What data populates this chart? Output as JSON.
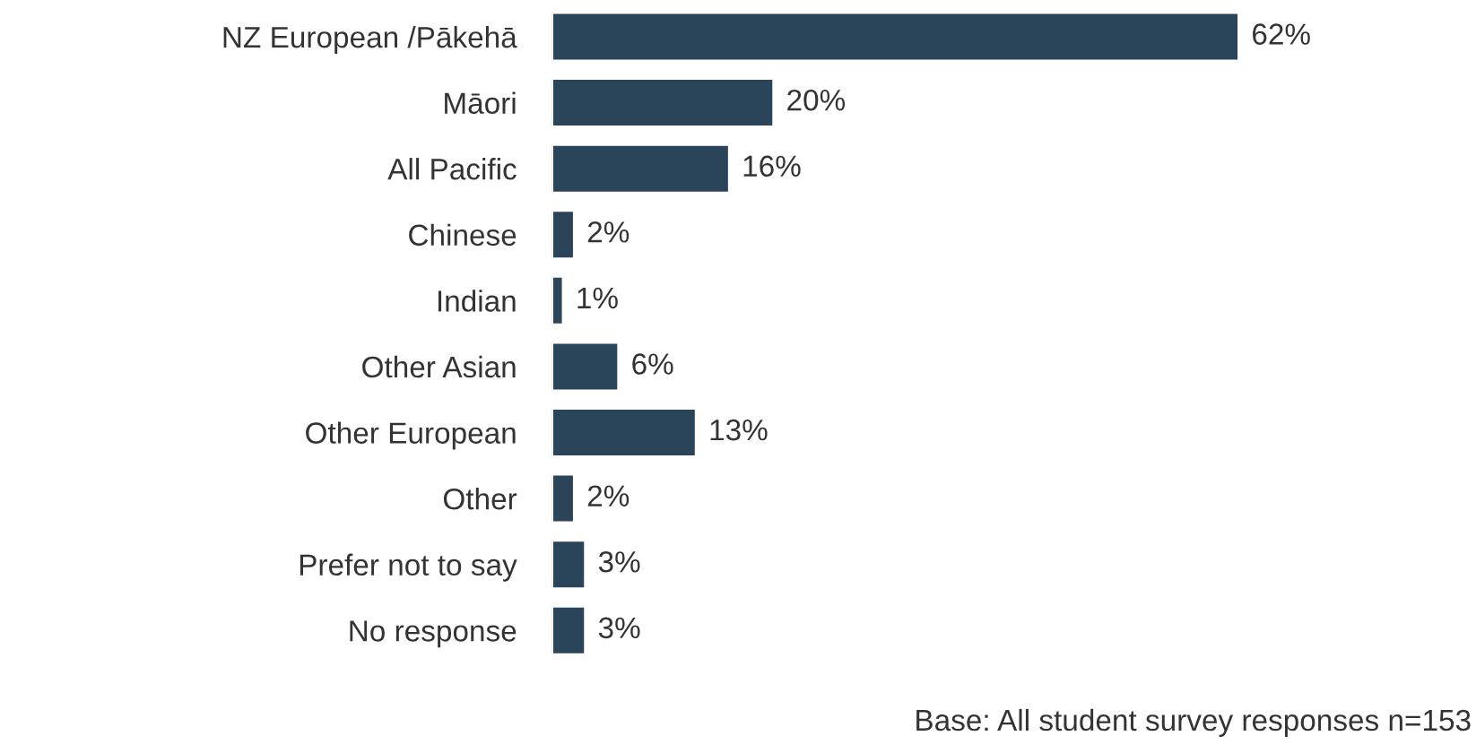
{
  "chart_data": {
    "type": "bar",
    "orientation": "horizontal",
    "categories": [
      "NZ European /Pākehā",
      "Māori",
      "All Pacific",
      "Chinese",
      "Indian",
      "Other Asian",
      "Other European",
      "Other",
      "Prefer not to say",
      "No response"
    ],
    "values": [
      62,
      20,
      16,
      2,
      1,
      6,
      13,
      2,
      3,
      3
    ],
    "value_labels": [
      "62%",
      "20%",
      "16%",
      "2%",
      "1%",
      "6%",
      "13%",
      "2%",
      "3%",
      "3%"
    ],
    "color": "#2a4459",
    "grid": false,
    "legend": false,
    "tick_labels": "y",
    "annotations": [
      "Base: All student survey responses n=153"
    ]
  }
}
